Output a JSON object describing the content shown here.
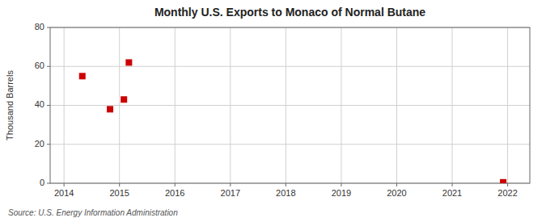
{
  "chart_data": {
    "type": "scatter",
    "title": "Monthly U.S. Exports to Monaco of Normal Butane",
    "ylabel": "Thousand Barrels",
    "source": "Source: U.S. Energy Information Administration",
    "x": [
      2014.33,
      2014.83,
      2015.08,
      2015.17,
      2021.92
    ],
    "values": [
      55,
      38,
      43,
      62,
      0.5
    ],
    "color": "#cc0000",
    "marker": "square",
    "xlim": [
      2013.75,
      2022.4
    ],
    "ylim": [
      0,
      80
    ],
    "xticks": [
      2014,
      2015,
      2016,
      2017,
      2018,
      2019,
      2020,
      2021,
      2022
    ],
    "yticks": [
      0,
      20,
      40,
      60,
      80
    ],
    "grid": true
  }
}
